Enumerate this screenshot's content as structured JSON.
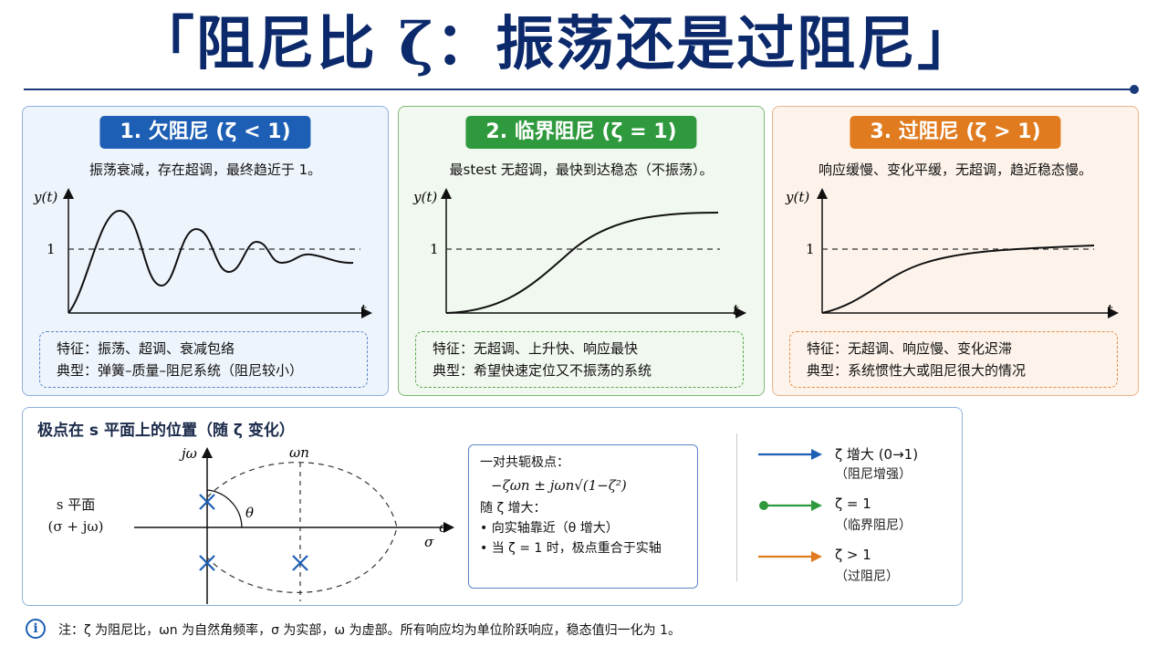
{
  "title": "「阻尼比 ζ：振荡还是过阻尼」",
  "colors": {
    "blue": "#1d5fb4",
    "green": "#2f9a3d",
    "orange": "#e07b1f",
    "navy": "#0c2a6b"
  },
  "cards": [
    {
      "heading": "1. 欠阻尼 (ζ < 1)",
      "description": "振荡衰减，存在超调，最终趋近于 1。",
      "y_axis_label": "y(t)",
      "x_axis_label": "t",
      "reference_label": "1",
      "feature_line": "特征：振荡、超调、衰减包络",
      "typical_line": "典型：弹簧–质量–阻尼系统（阻尼较小）"
    },
    {
      "heading": "2. 临界阻尼 (ζ = 1)",
      "description": "最stest 无超调，最快到达稳态（不振荡）。",
      "y_axis_label": "y(t)",
      "x_axis_label": "t",
      "reference_label": "1",
      "feature_line": "特征：无超调、上升快、响应最快",
      "typical_line": "典型：希望快速定位又不振荡的系统"
    },
    {
      "heading": "3. 过阻尼 (ζ > 1)",
      "description": "响应缓慢、变化平缓，无超调，趋近稳态慢。",
      "y_axis_label": "y(t)",
      "x_axis_label": "t",
      "reference_label": "1",
      "feature_line": "特征：无超调、响应慢、变化迟滞",
      "typical_line": "典型：系统惯性大或阻尼很大的情况"
    }
  ],
  "pole_panel": {
    "title": "极点在 s 平面上的位置（随 ζ 变化）",
    "splane_line1": "s 平面",
    "splane_line2": "(σ + jω)",
    "imag_axis_label": "jω",
    "real_axis_label": "σ",
    "real_axis_label_below": "σ",
    "omega_n_label": "ωn",
    "theta_label": "θ",
    "box": {
      "heading": "一对共轭极点：",
      "formula": "−ζωn ± jωn√(1−ζ²)",
      "increase_heading": "随 ζ 增大：",
      "bullet1": "• 向实轴靠近（θ 增大）",
      "bullet2": "• 当 ζ = 1 时，极点重合于实轴"
    },
    "legend": [
      {
        "label": "ζ 增大 (0→1)",
        "sub": "（阻尼增强）",
        "color": "#1d5fb4"
      },
      {
        "label": "ζ = 1",
        "sub": "（临界阻尼）",
        "color": "#2f9a3d"
      },
      {
        "label": "ζ > 1",
        "sub": "（过阻尼）",
        "color": "#e07b1f"
      }
    ]
  },
  "note": {
    "icon": "info-icon",
    "text": "注：ζ 为阻尼比，ωn 为自然角频率，σ 为实部，ω 为虚部。所有响应均为单位阶跃响应，稳态值归一化为 1。"
  }
}
